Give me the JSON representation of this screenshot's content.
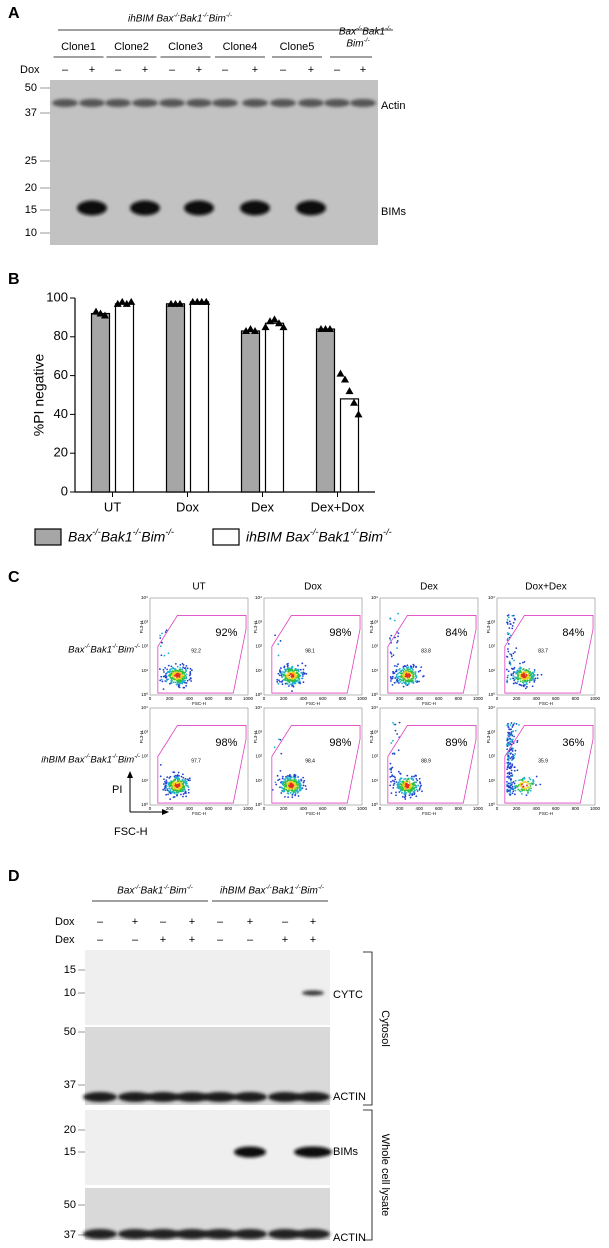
{
  "figure": {
    "panel_a": {
      "label": "A",
      "group_title": "ihBIM Bax-/-Bak1-/-Bim-/-",
      "control_title": [
        "Bax-/-Bak1-/-",
        "Bim-/-"
      ],
      "clones": [
        "Clone1",
        "Clone2",
        "Clone3",
        "Clone4",
        "Clone5"
      ],
      "treatment": "Dox",
      "signs": [
        "–",
        "+",
        "–",
        "+",
        "–",
        "+",
        "–",
        "+",
        "–",
        "+",
        "–",
        "+"
      ],
      "markers": [
        "50",
        "37",
        "25",
        "20",
        "15",
        "10"
      ],
      "bands": [
        "Actin",
        "BIMs"
      ]
    },
    "panel_c": {
      "label": "C",
      "columns": [
        "UT",
        "Dox",
        "Dex",
        "Dox+Dex"
      ],
      "rows": [
        "Bax-/-Bak1-/-Bim-/-",
        "ihBIM Bax-/-Bak1-/-Bim-/-"
      ],
      "percentages": [
        [
          "92%",
          "98%",
          "84%",
          "84%"
        ],
        [
          "98%",
          "98%",
          "89%",
          "36%"
        ]
      ],
      "gate_values": [
        [
          "92.2",
          "98.1",
          "83.8",
          "83.7"
        ],
        [
          "97.7",
          "98.4",
          "88.9",
          "35.9"
        ]
      ],
      "y_axis": "PI",
      "x_axis": "FSC-H",
      "plot_x_axis": "FSC-H",
      "plot_y_axis": "FL3-H",
      "plot_x_ticks": [
        "0",
        "200",
        "400",
        "600",
        "800",
        "1000"
      ],
      "plot_y_ticks": [
        "10⁰",
        "10¹",
        "10²",
        "10³",
        "10⁴"
      ]
    },
    "panel_d": {
      "label": "D",
      "groups": [
        "Bax-/-Bak1-/-Bim-/-",
        "ihBIM Bax-/-Bak1-/-Bim-/-"
      ],
      "treatments": [
        "Dox",
        "Dex"
      ],
      "signs": [
        [
          "–",
          "+",
          "–",
          "+",
          "–",
          "+",
          "–",
          "+"
        ],
        [
          "–",
          "–",
          "+",
          "+",
          "–",
          "–",
          "+",
          "+"
        ]
      ],
      "blots": [
        {
          "markers": [
            "15",
            "10"
          ],
          "band": "CYTC"
        },
        {
          "markers": [
            "50",
            "37"
          ],
          "band": "ACTIN"
        },
        {
          "markers": [
            "20",
            "15"
          ],
          "band": "BIMs"
        },
        {
          "markers": [
            "50",
            "37"
          ],
          "band": "ACTIN"
        }
      ],
      "fractions": [
        "Cytosol",
        "Whole cell lysate"
      ]
    }
  },
  "chart_data": {
    "type": "bar",
    "panel_label": "B",
    "ylabel": "%PI negative",
    "categories": [
      "UT",
      "Dox",
      "Dex",
      "Dex+Dox"
    ],
    "series": [
      {
        "name": "Bax-/-Bak1-/-Bim-/-",
        "color": "#a6a6a6",
        "values": [
          92,
          97,
          83,
          84
        ],
        "replicates": [
          [
            93,
            92,
            91
          ],
          [
            97,
            97,
            97
          ],
          [
            83,
            84,
            83
          ],
          [
            84,
            84,
            84
          ]
        ]
      },
      {
        "name": "ihBIM Bax-/-Bak1-/-Bim-/-",
        "color": "#ffffff",
        "values": [
          97,
          98,
          87,
          48
        ],
        "replicates": [
          [
            97,
            98,
            97,
            98
          ],
          [
            98,
            98,
            98,
            98
          ],
          [
            85,
            88,
            89,
            87,
            85
          ],
          [
            61,
            58,
            52,
            46,
            40
          ]
        ]
      }
    ],
    "ylim": [
      0,
      100
    ],
    "yticks": [
      0,
      20,
      40,
      60,
      80,
      100
    ],
    "marker": "triangle"
  }
}
